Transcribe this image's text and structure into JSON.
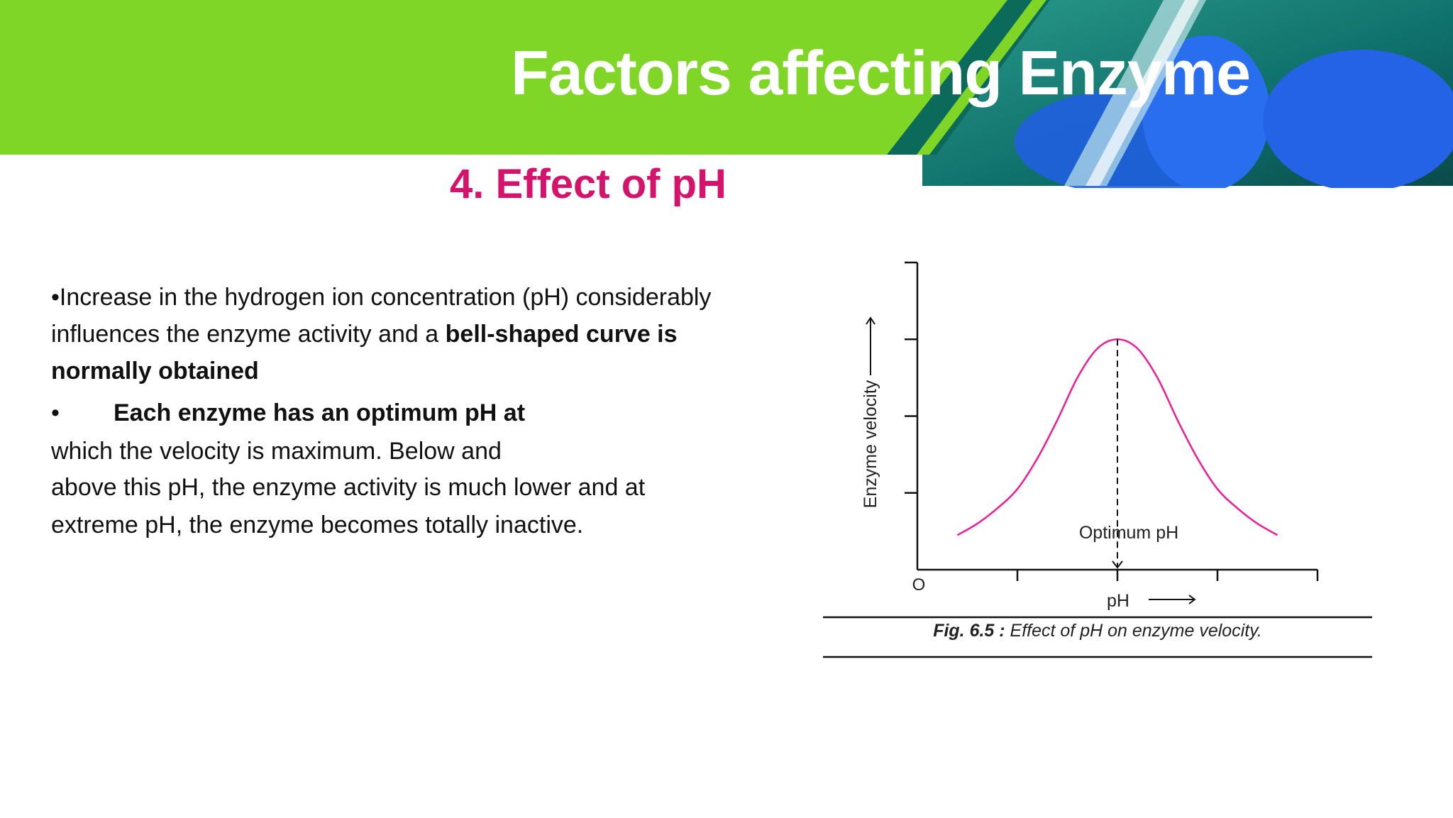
{
  "slide": {
    "title": "Factors affecting Enzyme",
    "subtitle": "4. Effect of pH",
    "body": {
      "p1_a": "•Increase in the hydrogen ion concentration (pH) considerably",
      "p1_b": "influences the enzyme activity  and a ",
      "p1_b_bold": "bell-shaped curve is",
      "p1_c_bold": "normally obtained",
      "p2_bullet": "•",
      "p2_bold": "Each enzyme has an optimum pH at",
      "p2_b": "which the velocity is maximum. Below and",
      "p2_c": "above this pH, the enzyme activity is much lower and at",
      "p2_d": "extreme pH, the enzyme becomes totally inactive."
    },
    "colors": {
      "banner": "#7fd626",
      "subtitle": "#d6136c",
      "curve": "#ee1c96"
    }
  },
  "chart_data": {
    "type": "line",
    "title": "",
    "xlabel": "pH",
    "ylabel": "Enzyme velocity",
    "origin_label": "O",
    "annotation": "Optimum pH",
    "optimum_x": 2,
    "xlim": [
      0,
      4
    ],
    "ylim": [
      0,
      4
    ],
    "x_ticks": [
      1,
      2,
      3,
      4
    ],
    "y_ticks": [
      1,
      2,
      3
    ],
    "series": [
      {
        "name": "Enzyme velocity",
        "x": [
          0.4,
          0.6,
          0.8,
          1.0,
          1.2,
          1.4,
          1.6,
          1.8,
          2.0,
          2.2,
          2.4,
          2.6,
          2.8,
          3.0,
          3.2,
          3.4,
          3.6
        ],
        "y": [
          0.45,
          0.6,
          0.8,
          1.05,
          1.45,
          1.95,
          2.5,
          2.88,
          3.0,
          2.88,
          2.5,
          1.95,
          1.45,
          1.05,
          0.8,
          0.6,
          0.45
        ]
      }
    ],
    "caption_bold": "Fig. 6.5 :",
    "caption": " Effect of pH on enzyme velocity."
  }
}
